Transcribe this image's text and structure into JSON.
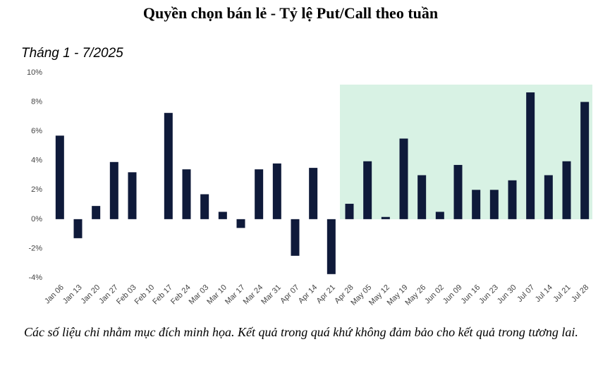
{
  "chart_data": {
    "type": "bar",
    "title": "Quyền chọn bán lẻ - Tỷ lệ Put/Call theo tuần",
    "subtitle": "Tháng 1 - 7/2025",
    "footnote": "Các số liệu chỉ nhằm mục đích minh họa. Kết quả trong quá khứ không đảm bảo cho kết quả trong tương lai.",
    "categories": [
      "Jan 06",
      "Jan 13",
      "Jan 20",
      "Jan 27",
      "Feb 03",
      "Feb 10",
      "Feb 17",
      "Feb 24",
      "Mar 03",
      "Mar 10",
      "Mar 17",
      "Mar 24",
      "Mar 31",
      "Apr 07",
      "Apr 14",
      "Apr 21",
      "Apr 28",
      "May 05",
      "May 12",
      "May 19",
      "May 26",
      "Jun 02",
      "Jun 09",
      "Jun 16",
      "Jun 23",
      "Jun 30",
      "Jul 07",
      "Jul 14",
      "Jul 21",
      "Jul 28"
    ],
    "values": [
      5.7,
      -1.3,
      0.9,
      3.9,
      3.2,
      0,
      7.25,
      3.4,
      1.7,
      0.5,
      -0.6,
      3.4,
      3.8,
      -2.5,
      3.5,
      -3.75,
      1.05,
      3.95,
      0.15,
      5.5,
      3.0,
      0.5,
      3.7,
      2.0,
      2.0,
      2.65,
      8.65,
      3.0,
      3.95,
      8.0
    ],
    "color": "#0f1a3a",
    "ylim": [
      -4,
      10
    ],
    "yticks": [
      {
        "value": -4,
        "label": "-4%"
      },
      {
        "value": -2,
        "label": "-2%"
      },
      {
        "value": 0,
        "label": "0%"
      },
      {
        "value": 2,
        "label": "2%"
      },
      {
        "value": 4,
        "label": "4%"
      },
      {
        "value": 6,
        "label": "6%"
      },
      {
        "value": 8,
        "label": "8%"
      },
      {
        "value": 10,
        "label": "10%"
      }
    ],
    "grid": false
  }
}
